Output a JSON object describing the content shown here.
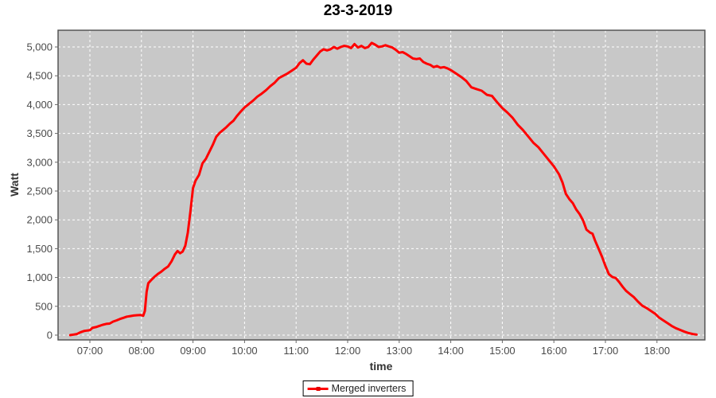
{
  "title": "23-3-2019",
  "legend": {
    "items": [
      {
        "label": "Merged inverters",
        "color": "#ff0000"
      }
    ]
  },
  "colors": {
    "plot_background": "#c8c8c8",
    "gridline": "#ffffff",
    "plot_border": "#555555",
    "tick_mark": "#666666",
    "tick_label": "#4a4a4a",
    "series_line": "#ff0000"
  },
  "chart_data": {
    "type": "line",
    "title": "23-3-2019",
    "xlabel": "time",
    "ylabel": "Watt",
    "grid": true,
    "legend_position": "bottom",
    "ylim": [
      0,
      5280
    ],
    "xlim": [
      "06:23",
      "18:56"
    ],
    "y_ticks": [
      {
        "value": 0,
        "label": "0"
      },
      {
        "value": 500,
        "label": "500"
      },
      {
        "value": 1000,
        "label": "1,000"
      },
      {
        "value": 1500,
        "label": "1,500"
      },
      {
        "value": 2000,
        "label": "2,000"
      },
      {
        "value": 2500,
        "label": "2,500"
      },
      {
        "value": 3000,
        "label": "3,000"
      },
      {
        "value": 3500,
        "label": "3,500"
      },
      {
        "value": 4000,
        "label": "4,000"
      },
      {
        "value": 4500,
        "label": "4,500"
      },
      {
        "value": 5000,
        "label": "5,000"
      }
    ],
    "x_ticks": [
      {
        "time": "07:00",
        "label": "07:00"
      },
      {
        "time": "08:00",
        "label": "08:00"
      },
      {
        "time": "09:00",
        "label": "09:00"
      },
      {
        "time": "10:00",
        "label": "10:00"
      },
      {
        "time": "11:00",
        "label": "11:00"
      },
      {
        "time": "12:00",
        "label": "12:00"
      },
      {
        "time": "13:00",
        "label": "13:00"
      },
      {
        "time": "14:00",
        "label": "14:00"
      },
      {
        "time": "15:00",
        "label": "15:00"
      },
      {
        "time": "16:00",
        "label": "16:00"
      },
      {
        "time": "17:00",
        "label": "17:00"
      },
      {
        "time": "18:00",
        "label": "18:00"
      }
    ],
    "series": [
      {
        "name": "Merged inverters",
        "color": "#ff0000",
        "points": [
          [
            "06:37",
            0
          ],
          [
            "06:41",
            10
          ],
          [
            "06:45",
            20
          ],
          [
            "06:49",
            50
          ],
          [
            "06:53",
            70
          ],
          [
            "06:57",
            80
          ],
          [
            "07:00",
            85
          ],
          [
            "07:03",
            125
          ],
          [
            "07:07",
            140
          ],
          [
            "07:11",
            160
          ],
          [
            "07:15",
            180
          ],
          [
            "07:19",
            195
          ],
          [
            "07:23",
            200
          ],
          [
            "07:27",
            235
          ],
          [
            "07:31",
            255
          ],
          [
            "07:35",
            280
          ],
          [
            "07:39",
            300
          ],
          [
            "07:43",
            320
          ],
          [
            "07:47",
            330
          ],
          [
            "07:51",
            340
          ],
          [
            "07:55",
            345
          ],
          [
            "07:59",
            350
          ],
          [
            "08:02",
            335
          ],
          [
            "08:04",
            420
          ],
          [
            "08:06",
            750
          ],
          [
            "08:08",
            900
          ],
          [
            "08:11",
            950
          ],
          [
            "08:15",
            1010
          ],
          [
            "08:19",
            1060
          ],
          [
            "08:23",
            1100
          ],
          [
            "08:27",
            1150
          ],
          [
            "08:31",
            1190
          ],
          [
            "08:35",
            1280
          ],
          [
            "08:39",
            1400
          ],
          [
            "08:42",
            1460
          ],
          [
            "08:45",
            1420
          ],
          [
            "08:48",
            1450
          ],
          [
            "08:51",
            1550
          ],
          [
            "08:54",
            1780
          ],
          [
            "08:57",
            2150
          ],
          [
            "09:00",
            2550
          ],
          [
            "09:03",
            2680
          ],
          [
            "09:07",
            2780
          ],
          [
            "09:11",
            2980
          ],
          [
            "09:15",
            3060
          ],
          [
            "09:19",
            3180
          ],
          [
            "09:23",
            3300
          ],
          [
            "09:27",
            3440
          ],
          [
            "09:31",
            3510
          ],
          [
            "09:35",
            3560
          ],
          [
            "09:39",
            3610
          ],
          [
            "09:43",
            3670
          ],
          [
            "09:47",
            3720
          ],
          [
            "09:51",
            3800
          ],
          [
            "09:55",
            3870
          ],
          [
            "10:00",
            3950
          ],
          [
            "10:05",
            4010
          ],
          [
            "10:10",
            4070
          ],
          [
            "10:15",
            4140
          ],
          [
            "10:20",
            4190
          ],
          [
            "10:25",
            4250
          ],
          [
            "10:30",
            4320
          ],
          [
            "10:35",
            4380
          ],
          [
            "10:40",
            4460
          ],
          [
            "10:45",
            4500
          ],
          [
            "10:50",
            4540
          ],
          [
            "10:55",
            4590
          ],
          [
            "11:00",
            4640
          ],
          [
            "11:04",
            4720
          ],
          [
            "11:08",
            4770
          ],
          [
            "11:12",
            4710
          ],
          [
            "11:16",
            4700
          ],
          [
            "11:20",
            4780
          ],
          [
            "11:24",
            4850
          ],
          [
            "11:28",
            4920
          ],
          [
            "11:32",
            4960
          ],
          [
            "11:36",
            4940
          ],
          [
            "11:40",
            4960
          ],
          [
            "11:44",
            5000
          ],
          [
            "11:48",
            4970
          ],
          [
            "11:52",
            5000
          ],
          [
            "11:56",
            5020
          ],
          [
            "12:00",
            5010
          ],
          [
            "12:04",
            4980
          ],
          [
            "12:08",
            5050
          ],
          [
            "12:12",
            4990
          ],
          [
            "12:16",
            5020
          ],
          [
            "12:20",
            4980
          ],
          [
            "12:24",
            5000
          ],
          [
            "12:28",
            5070
          ],
          [
            "12:32",
            5040
          ],
          [
            "12:36",
            5000
          ],
          [
            "12:40",
            5010
          ],
          [
            "12:44",
            5030
          ],
          [
            "12:48",
            5010
          ],
          [
            "12:52",
            4990
          ],
          [
            "12:56",
            4950
          ],
          [
            "13:00",
            4900
          ],
          [
            "13:04",
            4910
          ],
          [
            "13:08",
            4880
          ],
          [
            "13:12",
            4840
          ],
          [
            "13:16",
            4800
          ],
          [
            "13:20",
            4790
          ],
          [
            "13:24",
            4800
          ],
          [
            "13:28",
            4740
          ],
          [
            "13:32",
            4710
          ],
          [
            "13:36",
            4690
          ],
          [
            "13:40",
            4650
          ],
          [
            "13:44",
            4670
          ],
          [
            "13:48",
            4640
          ],
          [
            "13:52",
            4650
          ],
          [
            "13:56",
            4630
          ],
          [
            "14:00",
            4600
          ],
          [
            "14:06",
            4540
          ],
          [
            "14:12",
            4480
          ],
          [
            "14:18",
            4410
          ],
          [
            "14:24",
            4300
          ],
          [
            "14:30",
            4270
          ],
          [
            "14:36",
            4240
          ],
          [
            "14:42",
            4170
          ],
          [
            "14:48",
            4150
          ],
          [
            "14:54",
            4040
          ],
          [
            "15:00",
            3940
          ],
          [
            "15:06",
            3860
          ],
          [
            "15:12",
            3770
          ],
          [
            "15:18",
            3650
          ],
          [
            "15:24",
            3560
          ],
          [
            "15:30",
            3450
          ],
          [
            "15:36",
            3340
          ],
          [
            "15:42",
            3260
          ],
          [
            "15:48",
            3150
          ],
          [
            "15:54",
            3040
          ],
          [
            "16:00",
            2930
          ],
          [
            "16:06",
            2790
          ],
          [
            "16:10",
            2650
          ],
          [
            "16:14",
            2450
          ],
          [
            "16:18",
            2360
          ],
          [
            "16:22",
            2290
          ],
          [
            "16:26",
            2180
          ],
          [
            "16:30",
            2100
          ],
          [
            "16:34",
            1990
          ],
          [
            "16:38",
            1830
          ],
          [
            "16:42",
            1780
          ],
          [
            "16:45",
            1760
          ],
          [
            "16:48",
            1640
          ],
          [
            "16:52",
            1500
          ],
          [
            "16:56",
            1360
          ],
          [
            "17:00",
            1200
          ],
          [
            "17:04",
            1060
          ],
          [
            "17:08",
            1010
          ],
          [
            "17:12",
            990
          ],
          [
            "17:16",
            920
          ],
          [
            "17:20",
            840
          ],
          [
            "17:24",
            770
          ],
          [
            "17:28",
            720
          ],
          [
            "17:33",
            660
          ],
          [
            "17:38",
            580
          ],
          [
            "17:43",
            510
          ],
          [
            "17:48",
            470
          ],
          [
            "17:53",
            420
          ],
          [
            "17:58",
            370
          ],
          [
            "18:02",
            310
          ],
          [
            "18:07",
            260
          ],
          [
            "18:12",
            210
          ],
          [
            "18:17",
            160
          ],
          [
            "18:22",
            120
          ],
          [
            "18:27",
            90
          ],
          [
            "18:32",
            60
          ],
          [
            "18:37",
            35
          ],
          [
            "18:42",
            18
          ],
          [
            "18:46",
            10
          ]
        ]
      }
    ]
  }
}
